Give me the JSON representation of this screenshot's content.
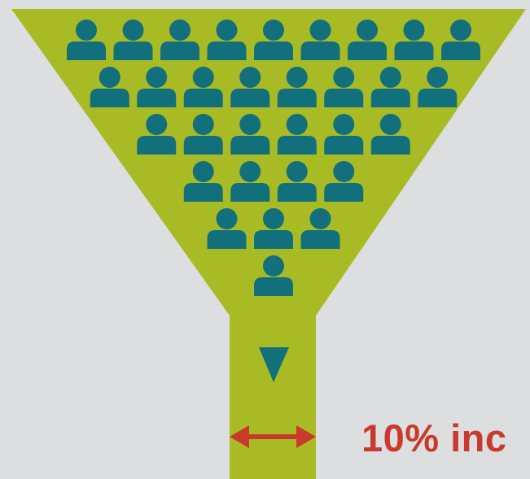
{
  "colors": {
    "background": "#dcdedf",
    "funnel": "#a8bb24",
    "person": "#126f7c",
    "arrow_down": "#126f7c",
    "width_arrow": "#c93a2c",
    "caption_text": "#c93a2c"
  },
  "funnel": {
    "people_rows": [
      9,
      8,
      6,
      4,
      3,
      1
    ],
    "person_icon": "person-icon",
    "flow_icon": "down-triangle-icon",
    "width_indicator_icon": "double-headed-arrow-icon"
  },
  "caption": {
    "text": "10% inc"
  }
}
